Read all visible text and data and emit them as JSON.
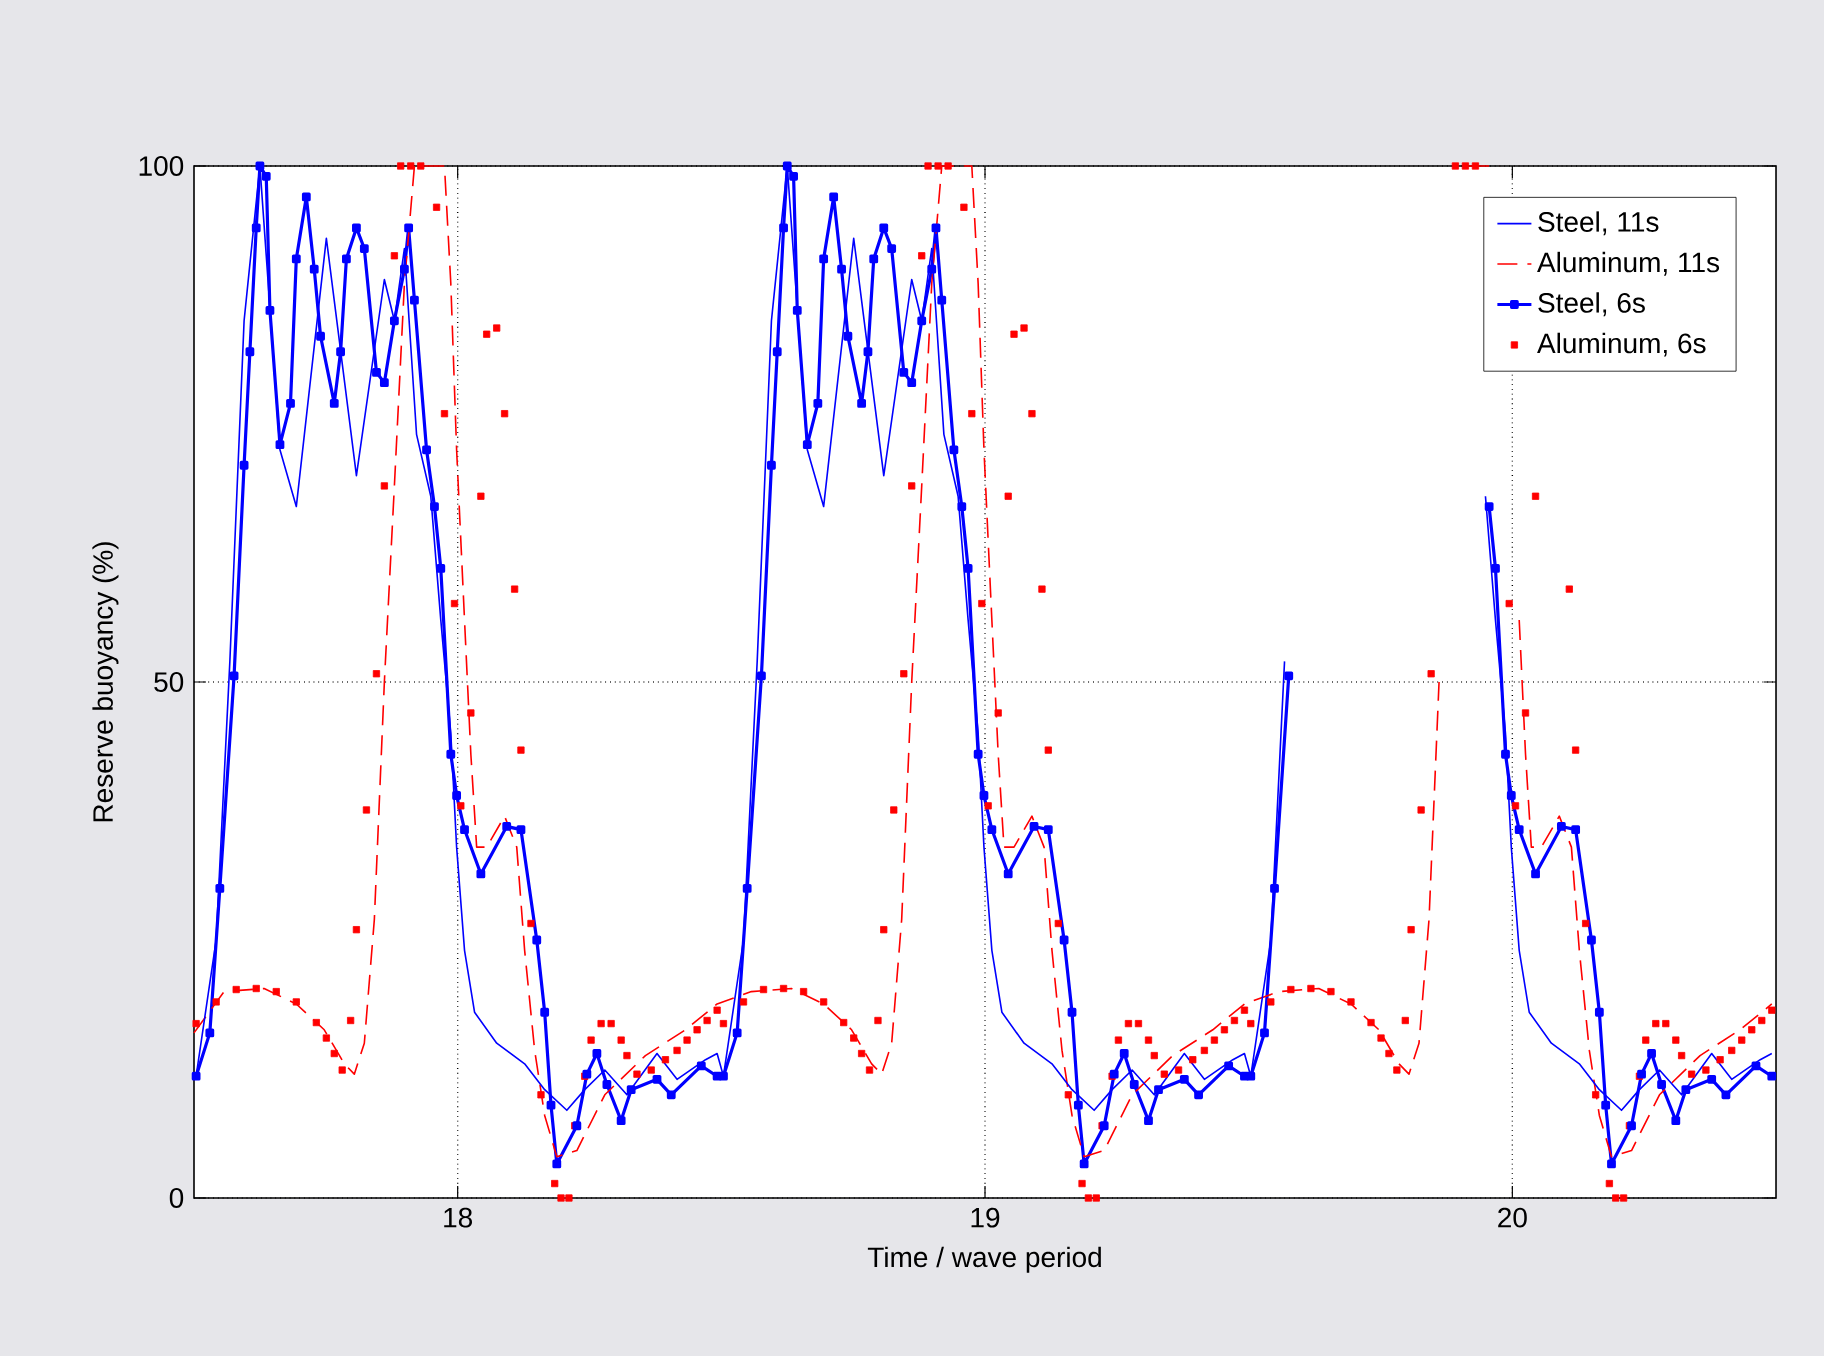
{
  "chart_data": {
    "type": "line",
    "xlabel": "Time / wave period",
    "ylabel": "Reserve buoyancy (%)",
    "xlim": [
      17.5,
      20.5
    ],
    "ylim": [
      0,
      100
    ],
    "xticks": [
      18,
      19,
      20
    ],
    "yticks": [
      0,
      50,
      100
    ],
    "grid": true,
    "legend": "top right",
    "series": [
      {
        "name": "Steel, 11s",
        "color": "#0000ff",
        "line_style": "solid",
        "marker": "none",
        "x": [
          17.504,
          17.542,
          17.568,
          17.595,
          17.625,
          17.663,
          17.694,
          17.751,
          17.808,
          17.861,
          17.88,
          17.899,
          17.922,
          17.949,
          17.968,
          17.987,
          17.998,
          18.013,
          18.032,
          18.074,
          18.127,
          18.165,
          18.207,
          18.241,
          18.279,
          18.321,
          18.378,
          18.416,
          18.47,
          18.492,
          18.504,
          18.542,
          18.568,
          18.595,
          18.625,
          18.663,
          18.694,
          18.751,
          18.808,
          18.861,
          18.88,
          18.899,
          18.922,
          18.949,
          18.968,
          18.987,
          18.998,
          19.013,
          19.032,
          19.074,
          19.127,
          19.165,
          19.207,
          19.241,
          19.279,
          19.321,
          19.378,
          19.416,
          19.47,
          19.492,
          19.504,
          19.542,
          19.568,
          19.595,
          19.625,
          19.663,
          19.694,
          19.751,
          19.808,
          19.861,
          19.88,
          19.899,
          19.922,
          19.949,
          19.968,
          19.987,
          19.998,
          20.013,
          20.032,
          20.074,
          20.127,
          20.165,
          20.207,
          20.241,
          20.279,
          20.321,
          20.378,
          20.416,
          20.47,
          20.492
        ],
        "values": [
          11.8,
          25,
          52,
          85,
          100,
          72.5,
          67,
          93,
          70,
          89,
          85,
          92,
          74,
          68,
          56,
          45,
          34,
          24,
          18,
          15,
          13,
          10.5,
          8.5,
          10.5,
          12.4,
          10,
          14,
          11.5,
          13.4,
          14,
          11.8,
          25,
          52,
          85,
          100,
          72.5,
          67,
          93,
          70,
          89,
          85,
          92,
          74,
          68,
          56,
          45,
          34,
          24,
          18,
          15,
          13,
          10.5,
          8.5,
          10.5,
          12.4,
          10,
          14,
          11.5,
          13.4,
          14,
          11.8,
          25,
          52,
          null,
          null,
          null,
          null,
          null,
          null,
          null,
          null,
          null,
          null,
          68,
          56,
          45,
          34,
          24,
          18,
          15,
          13,
          10.5,
          8.5,
          10.5,
          12.4,
          10,
          14,
          11.5,
          13.4,
          14
        ]
      },
      {
        "name": "Aluminum, 11s",
        "color": "#ff0000",
        "line_style": "dashed",
        "marker": "none",
        "x": [
          17.5,
          17.557,
          17.633,
          17.694,
          17.747,
          17.785,
          17.804,
          17.823,
          17.842,
          17.861,
          17.88,
          17.899,
          17.918,
          17.975,
          17.987,
          17.998,
          18.013,
          18.025,
          18.036,
          18.055,
          18.089,
          18.112,
          18.127,
          18.146,
          18.165,
          18.188,
          18.226,
          18.279,
          18.356,
          18.432,
          18.492,
          18.557,
          18.633,
          18.694,
          18.747,
          18.785,
          18.804,
          18.823,
          18.842,
          18.861,
          18.88,
          18.899,
          18.918,
          18.975,
          18.987,
          18.998,
          19.013,
          19.025,
          19.036,
          19.055,
          19.089,
          19.112,
          19.127,
          19.146,
          19.165,
          19.188,
          19.226,
          19.279,
          19.356,
          19.432,
          19.492,
          19.557,
          19.633,
          19.694,
          19.747,
          19.785,
          19.804,
          19.823,
          19.842,
          19.861,
          19.88,
          19.899,
          19.918,
          19.975,
          19.987,
          19.998,
          20.013,
          20.025,
          20.036,
          20.055,
          20.089,
          20.112,
          20.127,
          20.146,
          20.165,
          20.188,
          20.226,
          20.279,
          20.356,
          20.432,
          20.492
        ],
        "values": [
          16,
          20,
          20.3,
          18.8,
          16.3,
          13,
          12,
          15,
          27,
          50,
          69,
          88.6,
          100,
          100,
          88.6,
          72.5,
          56,
          43,
          34,
          34,
          37,
          34,
          24,
          14.3,
          8,
          4,
          4.6,
          10,
          13.8,
          16.3,
          18.8,
          20,
          20.3,
          18.8,
          16.3,
          13,
          12,
          15,
          27,
          50,
          69,
          88.6,
          100,
          100,
          88.6,
          72.5,
          56,
          43,
          34,
          34,
          37,
          34,
          24,
          14.3,
          8,
          4,
          4.6,
          10,
          13.8,
          16.3,
          18.8,
          20,
          20.3,
          18.8,
          16.3,
          13,
          12,
          15,
          27,
          50,
          null,
          null,
          100,
          100,
          null,
          null,
          56,
          43,
          34,
          34,
          37,
          34,
          24,
          14.3,
          8,
          4,
          4.6,
          10,
          13.8,
          16.3,
          18.8
        ]
      },
      {
        "name": "Steel, 6s",
        "color": "#0000ff",
        "line_style": "solid",
        "marker": "square",
        "x": [
          17.504,
          17.53,
          17.549,
          17.576,
          17.595,
          17.606,
          17.618,
          17.625,
          17.637,
          17.644,
          17.663,
          17.683,
          17.694,
          17.713,
          17.728,
          17.74,
          17.766,
          17.778,
          17.789,
          17.808,
          17.823,
          17.846,
          17.861,
          17.88,
          17.899,
          17.907,
          17.918,
          17.941,
          17.956,
          17.968,
          17.987,
          17.998,
          18.013,
          18.044,
          18.093,
          18.12,
          18.15,
          18.165,
          18.177,
          18.188,
          18.226,
          18.245,
          18.264,
          18.283,
          18.31,
          18.329,
          18.378,
          18.405,
          18.462,
          18.492,
          18.504,
          18.53,
          18.549,
          18.576,
          18.595,
          18.606,
          18.618,
          18.625,
          18.637,
          18.644,
          18.663,
          18.683,
          18.694,
          18.713,
          18.728,
          18.74,
          18.766,
          18.778,
          18.789,
          18.808,
          18.823,
          18.846,
          18.861,
          18.88,
          18.899,
          18.907,
          18.918,
          18.941,
          18.956,
          18.968,
          18.987,
          18.998,
          19.013,
          19.044,
          19.093,
          19.12,
          19.15,
          19.165,
          19.177,
          19.188,
          19.226,
          19.245,
          19.264,
          19.283,
          19.31,
          19.329,
          19.378,
          19.405,
          19.462,
          19.492,
          19.504,
          19.53,
          19.549,
          19.576,
          19.595,
          19.606,
          19.618,
          19.625,
          19.637,
          19.644,
          19.663,
          19.683,
          19.694,
          19.713,
          19.728,
          19.74,
          19.766,
          19.778,
          19.789,
          19.808,
          19.823,
          19.846,
          19.861,
          19.88,
          19.899,
          19.907,
          19.918,
          19.941,
          19.956,
          19.968,
          19.987,
          19.998,
          20.013,
          20.044,
          20.093,
          20.12,
          20.15,
          20.165,
          20.177,
          20.188,
          20.226,
          20.245,
          20.264,
          20.283,
          20.31,
          20.329,
          20.378,
          20.405,
          20.462,
          20.492
        ],
        "values": [
          11.8,
          16,
          30,
          50.6,
          71,
          82,
          94,
          100,
          99,
          86,
          73,
          77,
          91,
          97,
          90,
          83.5,
          77,
          82,
          91,
          94,
          92,
          80,
          79,
          85,
          90,
          94,
          87,
          72.5,
          67,
          61,
          43,
          39,
          35.7,
          31.4,
          36,
          35.7,
          25,
          18,
          9,
          3.3,
          7,
          12,
          14,
          11,
          7.5,
          10.5,
          11.5,
          10,
          12.8,
          11.8,
          11.8,
          16,
          30,
          50.6,
          71,
          82,
          94,
          100,
          99,
          86,
          73,
          77,
          91,
          97,
          90,
          83.5,
          77,
          82,
          91,
          94,
          92,
          80,
          79,
          85,
          90,
          94,
          87,
          72.5,
          67,
          61,
          43,
          39,
          35.7,
          31.4,
          36,
          35.7,
          25,
          18,
          9,
          3.3,
          7,
          12,
          14,
          11,
          7.5,
          10.5,
          11.5,
          10,
          12.8,
          11.8,
          11.8,
          16,
          30,
          50.6,
          null,
          null,
          null,
          null,
          null,
          null,
          null,
          null,
          null,
          null,
          null,
          null,
          null,
          null,
          null,
          null,
          null,
          null,
          null,
          null,
          null,
          null,
          null,
          null,
          67,
          61,
          43,
          39,
          35.7,
          31.4,
          36,
          35.7,
          25,
          18,
          9,
          3.3,
          7,
          12,
          14,
          11,
          7.5,
          10.5,
          11.5,
          10,
          12.8,
          11.8
        ]
      },
      {
        "name": "Aluminum, 6s",
        "color": "#ff0000",
        "type": "scatter",
        "marker": "square",
        "x": [
          17.504,
          17.542,
          17.58,
          17.618,
          17.656,
          17.694,
          17.732,
          17.751,
          17.766,
          17.781,
          17.797,
          17.808,
          17.827,
          17.846,
          17.861,
          17.88,
          17.892,
          17.911,
          17.93,
          17.96,
          17.975,
          17.994,
          18.006,
          18.025,
          18.044,
          18.055,
          18.074,
          18.089,
          18.108,
          18.12,
          18.139,
          18.158,
          18.184,
          18.196,
          18.211,
          18.222,
          18.241,
          18.253,
          18.272,
          18.291,
          18.31,
          18.321,
          18.34,
          18.367,
          18.394,
          18.416,
          18.435,
          18.454,
          18.473,
          18.492,
          18.504,
          18.542,
          18.58,
          18.618,
          18.656,
          18.694,
          18.732,
          18.751,
          18.766,
          18.781,
          18.797,
          18.808,
          18.827,
          18.846,
          18.861,
          18.88,
          18.892,
          18.911,
          18.93,
          18.96,
          18.975,
          18.994,
          19.006,
          19.025,
          19.044,
          19.055,
          19.074,
          19.089,
          19.108,
          19.12,
          19.139,
          19.158,
          19.184,
          19.196,
          19.211,
          19.222,
          19.241,
          19.253,
          19.272,
          19.291,
          19.31,
          19.321,
          19.34,
          19.367,
          19.394,
          19.416,
          19.435,
          19.454,
          19.473,
          19.492,
          19.504,
          19.542,
          19.58,
          19.618,
          19.656,
          19.694,
          19.732,
          19.751,
          19.766,
          19.781,
          19.797,
          19.808,
          19.827,
          19.846,
          19.861,
          19.88,
          19.892,
          19.911,
          19.93,
          19.96,
          19.975,
          19.994,
          20.006,
          20.025,
          20.044,
          20.055,
          20.074,
          20.089,
          20.108,
          20.12,
          20.139,
          20.158,
          20.184,
          20.196,
          20.211,
          20.222,
          20.241,
          20.253,
          20.272,
          20.291,
          20.31,
          20.321,
          20.34,
          20.367,
          20.394,
          20.416,
          20.435,
          20.454,
          20.473,
          20.492
        ],
        "values": [
          16.9,
          19,
          20.2,
          20.3,
          20,
          19,
          17,
          15.5,
          14,
          12.4,
          17.2,
          26,
          37.6,
          50.8,
          69,
          91.3,
          100,
          100,
          100,
          96,
          76,
          57.6,
          38,
          47,
          68,
          83.7,
          84.3,
          76,
          59,
          43.4,
          26.6,
          10,
          1.4,
          0,
          0,
          7,
          11.8,
          15.3,
          16.9,
          16.9,
          15.3,
          13.8,
          12,
          12.4,
          13.4,
          14.3,
          15.3,
          16.3,
          17.2,
          18.2,
          16.9,
          19,
          20.2,
          20.3,
          20,
          19,
          17,
          15.5,
          14,
          12.4,
          17.2,
          26,
          37.6,
          50.8,
          69,
          91.3,
          100,
          100,
          100,
          96,
          76,
          57.6,
          38,
          47,
          68,
          83.7,
          84.3,
          76,
          59,
          43.4,
          26.6,
          10,
          1.4,
          0,
          0,
          7,
          11.8,
          15.3,
          16.9,
          16.9,
          15.3,
          13.8,
          12,
          12.4,
          13.4,
          14.3,
          15.3,
          16.3,
          17.2,
          18.2,
          16.9,
          19,
          20.2,
          20.3,
          20,
          19,
          17,
          15.5,
          14,
          12.4,
          17.2,
          26,
          37.6,
          50.8,
          null,
          null,
          100,
          100,
          100,
          null,
          null,
          57.6,
          38,
          47,
          68,
          null,
          null,
          null,
          59,
          43.4,
          26.6,
          10,
          1.4,
          0,
          0,
          7,
          11.8,
          15.3,
          16.9,
          16.9,
          15.3,
          13.8,
          12,
          12.4,
          13.4,
          14.3,
          15.3,
          16.3,
          17.2,
          18.2
        ]
      }
    ]
  }
}
